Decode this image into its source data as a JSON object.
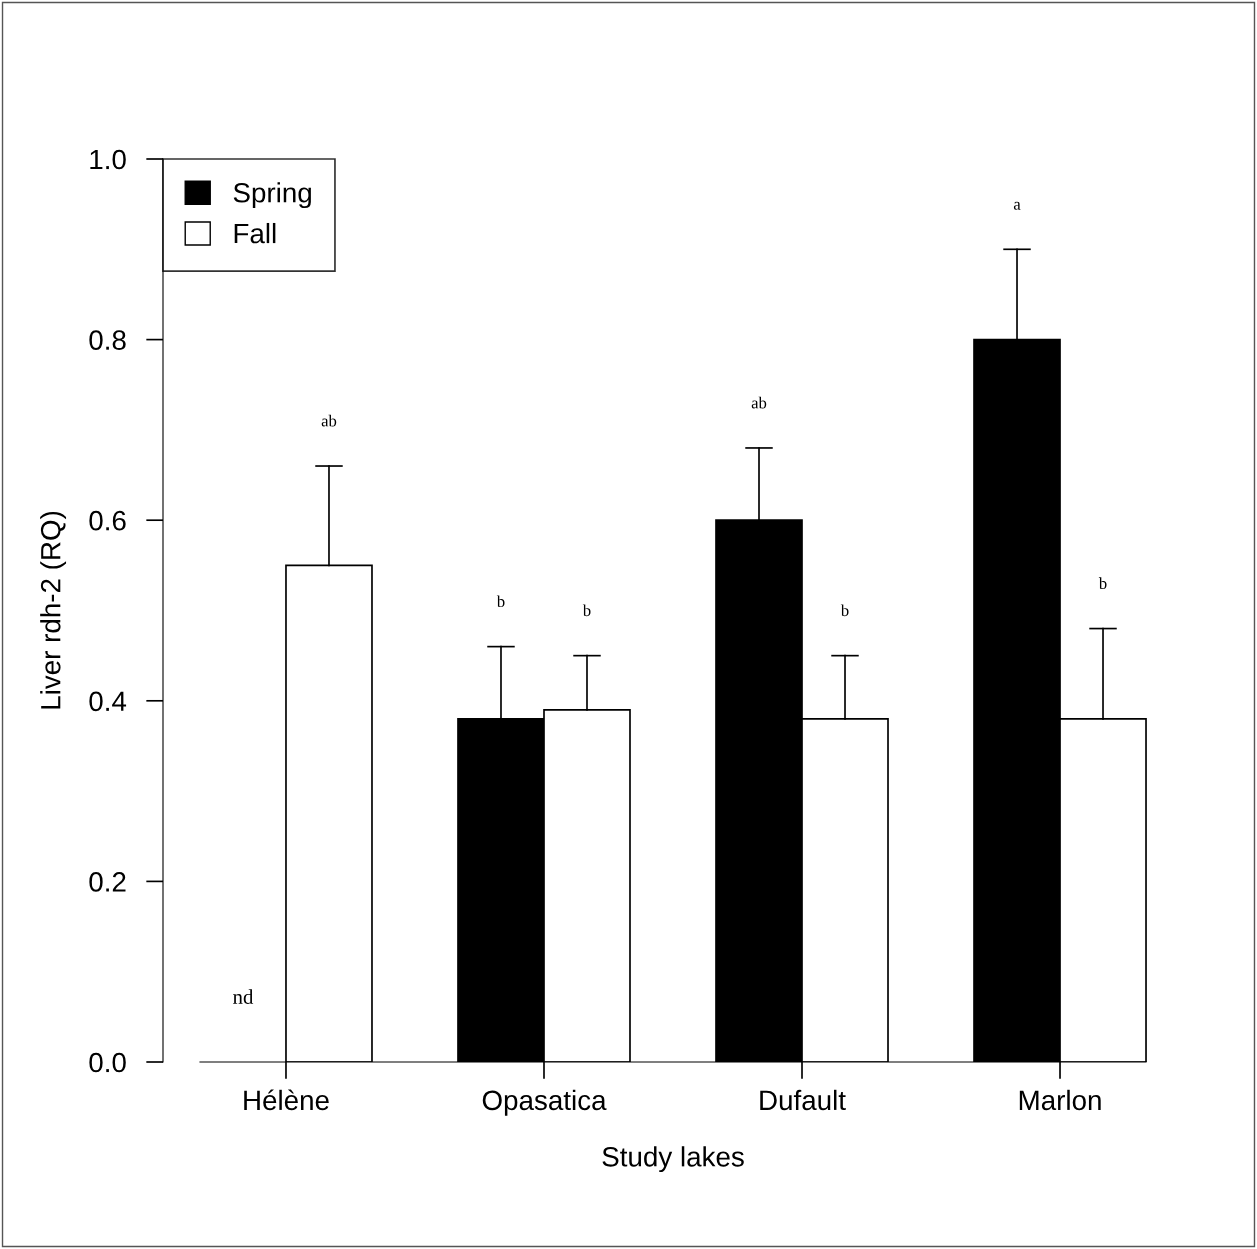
{
  "chart_data": {
    "type": "bar",
    "xlabel": "Study lakes",
    "ylabel": "Liver rdh-2 (RQ)",
    "categories": [
      "Hélène",
      "Opasatica",
      "Dufault",
      "Marlon"
    ],
    "series": [
      {
        "name": "Spring",
        "color": "#000000",
        "values": [
          null,
          0.38,
          0.6,
          0.8
        ],
        "errors": [
          null,
          [
            0.38,
            0.46
          ],
          [
            0.6,
            0.68
          ],
          [
            0.8,
            0.9
          ]
        ]
      },
      {
        "name": "Fall",
        "color": "#ffffff",
        "values": [
          0.55,
          0.39,
          0.38,
          0.38
        ],
        "errors": [
          [
            0.55,
            0.66
          ],
          [
            0.39,
            0.45
          ],
          [
            0.38,
            0.45
          ],
          [
            0.38,
            0.48
          ]
        ]
      }
    ],
    "ylim": [
      0,
      1
    ],
    "yticks": [
      {
        "value": 0,
        "label": "0.0"
      },
      0.2,
      0.4,
      0.6,
      0.8,
      {
        "value": 1,
        "label": "1.0"
      }
    ],
    "annotations": [
      "nd",
      "ab",
      "b",
      "b",
      "ab",
      "b",
      "a",
      "b"
    ],
    "legend": "top left",
    "grid": false
  }
}
